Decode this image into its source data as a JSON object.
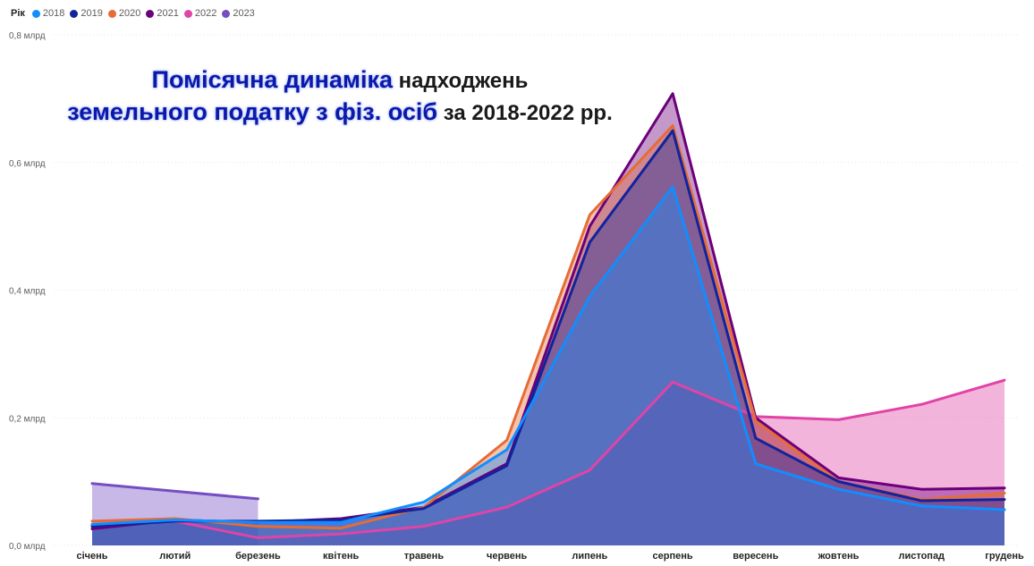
{
  "legend": {
    "title": "Рік"
  },
  "colors": {
    "2018": "#118dff",
    "2019": "#12239e",
    "2020": "#e66c37",
    "2021": "#6b007b",
    "2022": "#e044a7",
    "2023": "#744ec2"
  },
  "title": {
    "line1_highlight": "Помісячна динаміка",
    "line1_rest": " надходжень",
    "line2_highlight": "земельного податку з фіз. осіб",
    "line2_rest": " за 2018-2022 рр."
  },
  "chart_data": {
    "type": "area",
    "categories": [
      "січень",
      "лютий",
      "березень",
      "квітень",
      "травень",
      "червень",
      "липень",
      "серпень",
      "вересень",
      "жовтень",
      "листопад",
      "грудень"
    ],
    "y_ticks": [
      0,
      0.2,
      0.4,
      0.6,
      0.8
    ],
    "y_tick_labels": [
      "0,0 млрд",
      "0,2 млрд",
      "0,4 млрд",
      "0,6 млрд",
      "0,8 млрд"
    ],
    "ylim": [
      0,
      0.8
    ],
    "grid": true,
    "legend_position": "top-left",
    "series": [
      {
        "name": "2023",
        "values": [
          0.097,
          0.085,
          0.073,
          null,
          null,
          null,
          null,
          null,
          null,
          null,
          null,
          null
        ]
      },
      {
        "name": "2022",
        "values": [
          0.033,
          0.038,
          0.012,
          0.018,
          0.03,
          0.06,
          0.118,
          0.256,
          0.202,
          0.197,
          0.221,
          0.259
        ]
      },
      {
        "name": "2021",
        "values": [
          0.026,
          0.04,
          0.036,
          0.042,
          0.06,
          0.128,
          0.5,
          0.708,
          0.2,
          0.106,
          0.088,
          0.09
        ]
      },
      {
        "name": "2020",
        "values": [
          0.038,
          0.042,
          0.03,
          0.027,
          0.06,
          0.165,
          0.518,
          0.658,
          0.195,
          0.1,
          0.072,
          0.082
        ]
      },
      {
        "name": "2019",
        "values": [
          0.03,
          0.038,
          0.038,
          0.04,
          0.058,
          0.125,
          0.475,
          0.65,
          0.168,
          0.1,
          0.07,
          0.072
        ]
      },
      {
        "name": "2018",
        "values": [
          0.033,
          0.04,
          0.036,
          0.036,
          0.068,
          0.15,
          0.39,
          0.562,
          0.128,
          0.088,
          0.062,
          0.056
        ]
      }
    ]
  }
}
